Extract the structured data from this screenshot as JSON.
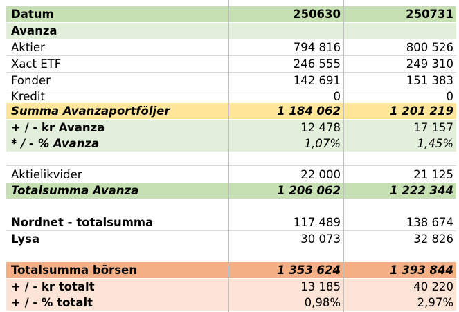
{
  "header": {
    "label": "Datum",
    "col1": "250630",
    "col2": "250731"
  },
  "sections": {
    "avanza_title": "Avanza",
    "avanza_rows": [
      {
        "label": "Aktier",
        "v1": "794 816",
        "v2": "800 526"
      },
      {
        "label": "Xact ETF",
        "v1": "246 555",
        "v2": "249 310"
      },
      {
        "label": "Fonder",
        "v1": "142 691",
        "v2": "151 383"
      },
      {
        "label": "Kredit",
        "v1": "0",
        "v2": "0"
      }
    ],
    "summa_avanza": {
      "label": "Summa Avanzaportföljer",
      "v1": "1 184 062",
      "v2": "1 201 219"
    },
    "kr_avanza": {
      "label": "+ / - kr Avanza",
      "v1": "12 478",
      "v2": "17 157"
    },
    "pct_avanza": {
      "label": "*  /  -  % Avanza",
      "v1": "1,07%",
      "v2": "1,45%"
    },
    "aktielikvider": {
      "label": "Aktielikvider",
      "v1": "22 000",
      "v2": "21 125"
    },
    "totalsumma_avanza": {
      "label": "Totalsumma Avanza",
      "v1": "1 206 062",
      "v2": "1 222 344"
    },
    "nordnet": {
      "label": "Nordnet - totalsumma",
      "v1": "117 489",
      "v2": "138 674"
    },
    "lysa": {
      "label": "Lysa",
      "v1": "30 073",
      "v2": "32 826"
    },
    "totalsumma_borsen": {
      "label": "Totalsumma börsen",
      "v1": "1 353 624",
      "v2": "1 393 844"
    },
    "kr_totalt": {
      "label": "+ / - kr totalt",
      "v1": "13 185",
      "v2": "40 220"
    },
    "pct_totalt": {
      "label": "+ / - % totalt",
      "v1": "0,98%",
      "v2": "2,97%"
    }
  },
  "colors": {
    "green": "#c6e0b4",
    "light_green": "#e2efda",
    "yellow": "#ffe699",
    "orange": "#f4b084",
    "peach": "#fce4d6"
  }
}
